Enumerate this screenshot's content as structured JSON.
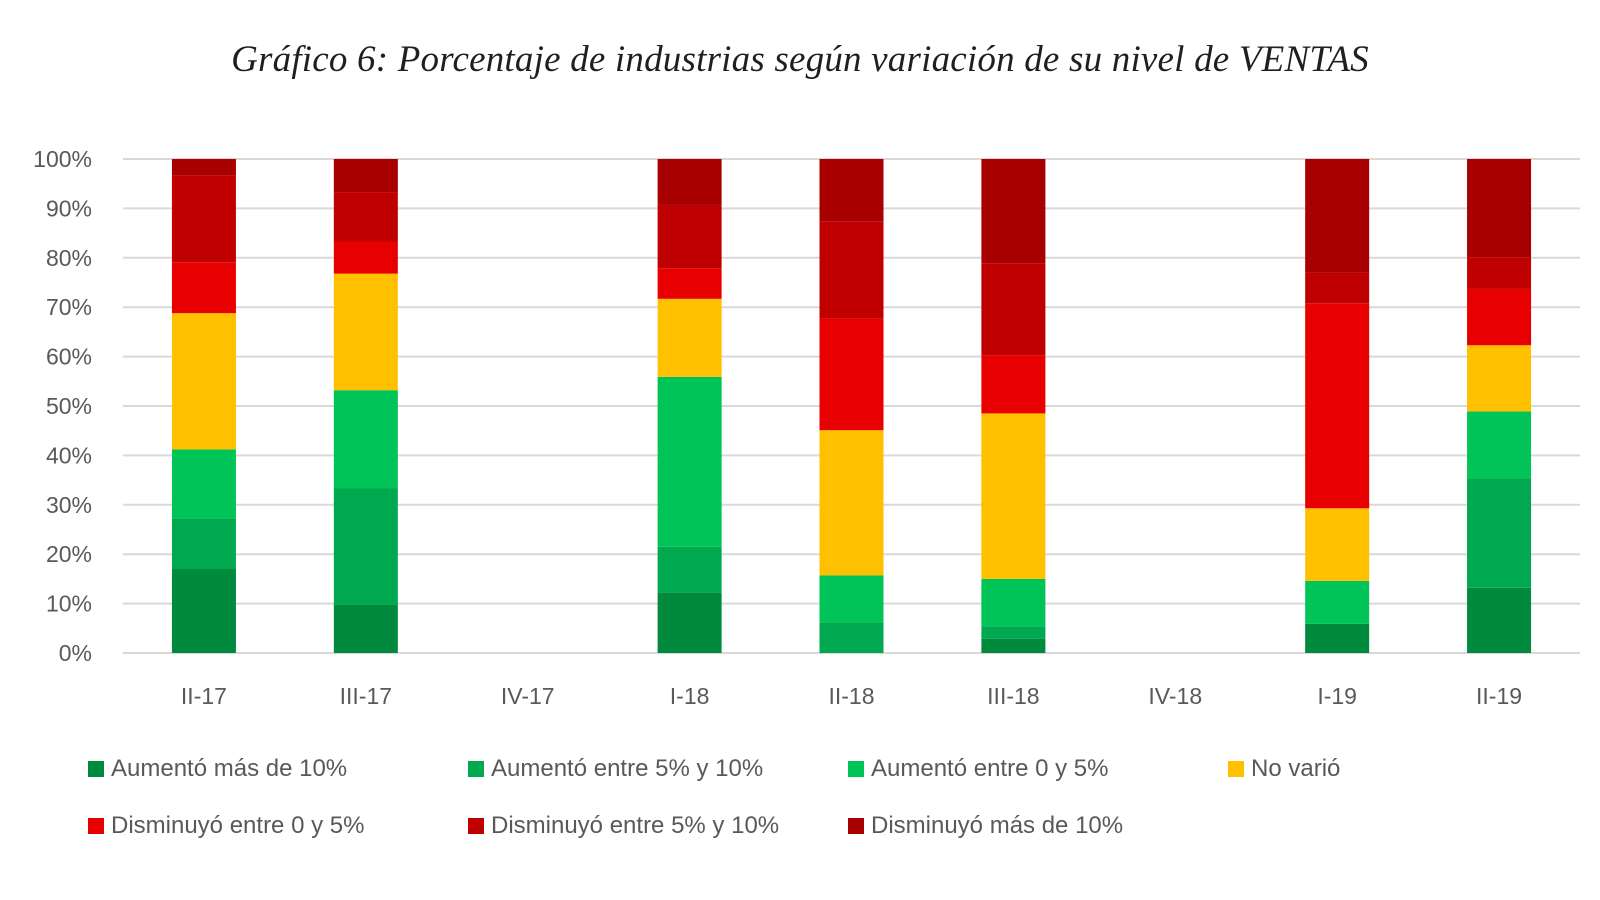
{
  "chart_data": {
    "type": "bar",
    "stacked": true,
    "normalized": true,
    "title": "Gráfico 6: Porcentaje de industrias según variación de su nivel de VENTAS",
    "xlabel": "",
    "ylabel": "",
    "ylim": [
      0,
      100
    ],
    "yticks": [
      "0%",
      "10%",
      "20%",
      "30%",
      "40%",
      "50%",
      "60%",
      "70%",
      "80%",
      "90%",
      "100%"
    ],
    "grid": true,
    "legend_position": "bottom",
    "categories": [
      "II-17",
      "III-17",
      "IV-17",
      "I-18",
      "II-18",
      "III-18",
      "IV-18",
      "I-19",
      "II-19"
    ],
    "series": [
      {
        "name": "Aumentó más de 10%",
        "color": "#008A3E",
        "values": [
          17.0,
          9.8,
          null,
          12.3,
          0.0,
          2.9,
          null,
          5.9,
          13.2
        ]
      },
      {
        "name": "Aumentó entre 5% y 10%",
        "color": "#00A94F",
        "values": [
          10.2,
          23.5,
          null,
          9.2,
          6.2,
          2.5,
          null,
          0.0,
          22.2
        ]
      },
      {
        "name": "Aumentó entre 0 y 5%",
        "color": "#00C457",
        "values": [
          14.0,
          19.9,
          null,
          34.4,
          9.5,
          9.6,
          null,
          8.7,
          13.5
        ]
      },
      {
        "name": "No varió",
        "color": "#FFC000",
        "values": [
          27.6,
          23.6,
          null,
          15.8,
          29.4,
          33.5,
          null,
          14.7,
          13.4
        ]
      },
      {
        "name": "Disminuyó entre 0 y 5%",
        "color": "#E80000",
        "values": [
          10.3,
          6.5,
          null,
          6.2,
          22.7,
          11.8,
          null,
          41.5,
          11.4
        ]
      },
      {
        "name": "Disminuyó entre 5% y 10%",
        "color": "#C00000",
        "values": [
          17.5,
          10.0,
          null,
          12.8,
          19.5,
          18.5,
          null,
          6.2,
          6.4
        ]
      },
      {
        "name": "Disminuyó más de 10%",
        "color": "#A80000",
        "values": [
          3.4,
          6.7,
          null,
          9.3,
          12.7,
          21.2,
          null,
          23.0,
          19.9
        ]
      }
    ]
  }
}
